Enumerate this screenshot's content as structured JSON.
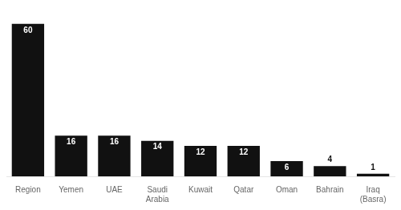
{
  "chart_data": {
    "type": "bar",
    "categories": [
      "Region",
      "Yemen",
      "UAE",
      "Saudi\nArabia",
      "Kuwait",
      "Qatar",
      "Oman",
      "Bahrain",
      "Iraq\n(Basra)"
    ],
    "values": [
      60,
      16,
      16,
      14,
      12,
      12,
      6,
      4,
      1
    ],
    "color": "#111111",
    "ylim": [
      0,
      65
    ],
    "grid": false,
    "data_labels": true,
    "tick_labels": "x"
  }
}
